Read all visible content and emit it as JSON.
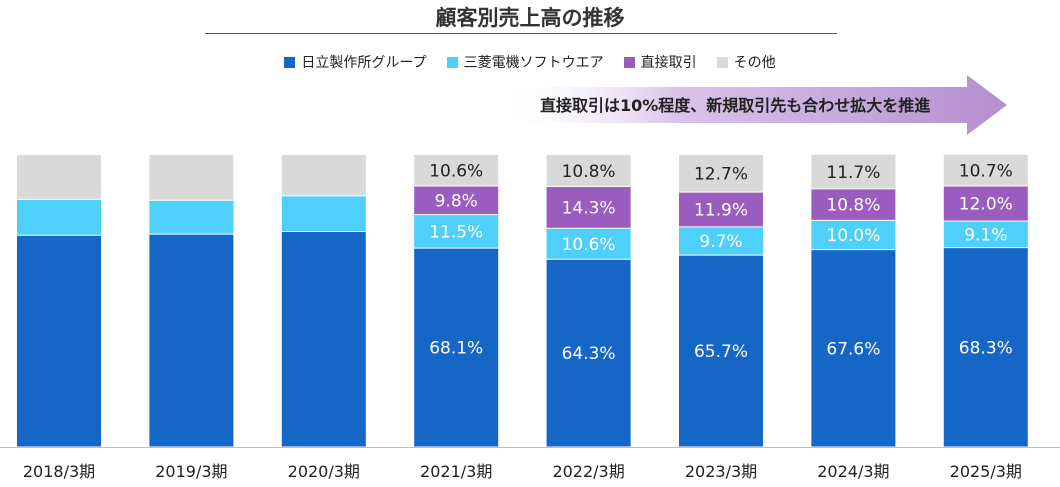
{
  "title": "顧客別売上高の推移",
  "banner": {
    "text": "直接取引は10%程度、新規取引先も合わせ拡大を推進",
    "color": "#b58fd0"
  },
  "colors": {
    "hitachi": "#1666c5",
    "mitsubishi": "#4fd0fb",
    "direct": "#9b5cbf",
    "other": "#d9d9d9"
  },
  "legend": [
    {
      "label": "日立製作所グループ",
      "color": "#1666c5"
    },
    {
      "label": "三菱電機ソフトウエア",
      "color": "#4fd0fb"
    },
    {
      "label": "直接取引",
      "color": "#9b5cbf"
    },
    {
      "label": "その他",
      "color": "#d9d9d9"
    }
  ],
  "chart_data": {
    "type": "bar",
    "stacked": true,
    "percent_stacked": true,
    "categories": [
      "2018/3期",
      "2019/3期",
      "2020/3期",
      "2021/3期",
      "2022/3期",
      "2023/3期",
      "2024/3期",
      "2025/3期"
    ],
    "series": [
      {
        "name": "日立製作所グループ",
        "values": [
          72.5,
          72.9,
          73.8,
          68.1,
          64.3,
          65.7,
          67.6,
          68.3
        ],
        "labels": [
          "",
          "",
          "",
          "68.1%",
          "64.3%",
          "65.7%",
          "67.6%",
          "68.3%"
        ]
      },
      {
        "name": "三菱電機ソフトウエア",
        "values": [
          12.3,
          11.6,
          12.2,
          11.5,
          10.6,
          9.7,
          10.0,
          9.1
        ],
        "labels": [
          "",
          "",
          "",
          "11.5%",
          "10.6%",
          "9.7%",
          "10.0%",
          "9.1%"
        ]
      },
      {
        "name": "直接取引",
        "values": [
          0,
          0,
          0,
          9.8,
          14.3,
          11.9,
          10.8,
          12.0
        ],
        "labels": [
          "",
          "",
          "",
          "9.8%",
          "14.3%",
          "11.9%",
          "10.8%",
          "12.0%"
        ]
      },
      {
        "name": "その他",
        "values": [
          15.2,
          15.5,
          14.0,
          10.6,
          10.8,
          12.7,
          11.7,
          10.7
        ],
        "labels": [
          "",
          "",
          "",
          "10.6%",
          "10.8%",
          "12.7%",
          "11.7%",
          "10.7%"
        ]
      }
    ],
    "ylim": [
      0,
      100
    ],
    "grid": false,
    "legend_position": "top"
  }
}
